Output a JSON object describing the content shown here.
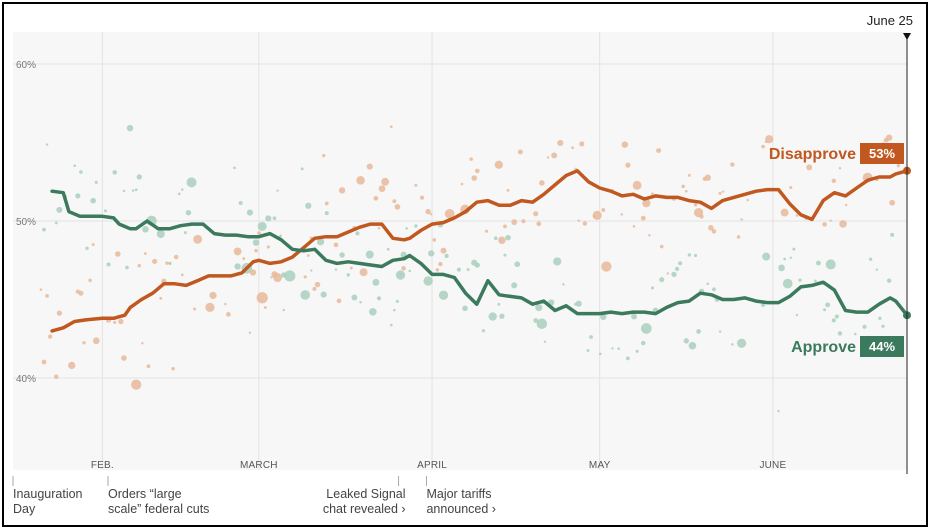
{
  "chart_data": {
    "type": "line",
    "title": "",
    "ylim": [
      35,
      62
    ],
    "y_ticks": [
      {
        "value": 40,
        "label": "40%"
      },
      {
        "value": 50,
        "label": "50%"
      },
      {
        "value": 60,
        "label": "60%"
      }
    ],
    "x_range_days": [
      -4,
      156
    ],
    "months": [
      {
        "label": "FEB.",
        "day": 12
      },
      {
        "label": "MARCH",
        "day": 40
      },
      {
        "label": "APRIL",
        "day": 71
      },
      {
        "label": "MAY",
        "day": 101
      },
      {
        "label": "JUNE",
        "day": 132
      }
    ],
    "end_date": {
      "label": "June 25",
      "day": 156
    },
    "series": [
      {
        "name": "Disapprove",
        "color": "#c0581f",
        "dot_color": "#e8b89a",
        "current_label": "53%",
        "x": [
          3,
          5,
          7,
          9,
          12,
          14,
          16,
          17,
          19,
          21,
          23,
          25,
          27,
          29,
          31,
          33,
          35,
          37,
          39,
          40,
          42,
          44,
          46,
          48,
          50,
          52,
          54,
          56,
          58,
          60,
          62,
          64,
          66,
          67,
          69,
          71,
          73,
          75,
          77,
          79,
          81,
          83,
          85,
          87,
          89,
          91,
          93,
          95,
          97,
          99,
          101,
          103,
          105,
          107,
          109,
          111,
          113,
          115,
          117,
          119,
          121,
          123,
          125,
          127,
          129,
          131,
          133,
          135,
          137,
          139,
          141,
          143,
          145,
          147,
          149,
          151,
          153,
          154,
          156
        ],
        "values": [
          43.0,
          43.2,
          43.6,
          43.7,
          43.8,
          43.8,
          44.0,
          44.5,
          45.0,
          45.4,
          46.0,
          46.0,
          45.9,
          46.2,
          46.5,
          46.5,
          46.5,
          46.7,
          47.4,
          47.5,
          47.3,
          47.4,
          47.7,
          48.3,
          48.9,
          49.0,
          49.0,
          49.3,
          49.6,
          49.8,
          49.8,
          48.9,
          48.8,
          48.9,
          49.4,
          49.8,
          49.9,
          50.2,
          50.6,
          51.2,
          51.3,
          51.0,
          51.0,
          51.3,
          51.2,
          51.7,
          52.3,
          52.9,
          53.2,
          52.5,
          52.1,
          51.9,
          51.6,
          51.7,
          51.4,
          51.6,
          51.5,
          51.5,
          51.3,
          51.2,
          50.8,
          51.3,
          51.5,
          51.7,
          51.9,
          52.0,
          52.0,
          51.1,
          50.4,
          50.1,
          51.3,
          51.8,
          51.6,
          52.1,
          52.6,
          52.8,
          52.8,
          53.0,
          53.2
        ]
      },
      {
        "name": "Approve",
        "color": "#3b7a5d",
        "dot_color": "#a9d0bd",
        "current_label": "44%",
        "x": [
          3,
          5,
          6,
          8,
          10,
          12,
          14,
          15,
          17,
          18,
          20,
          22,
          24,
          26,
          28,
          30,
          32,
          34,
          36,
          38,
          40,
          42,
          44,
          46,
          48,
          50,
          52,
          54,
          56,
          58,
          60,
          62,
          64,
          66,
          67,
          69,
          71,
          73,
          75,
          77,
          79,
          81,
          83,
          85,
          87,
          89,
          91,
          93,
          95,
          97,
          99,
          101,
          103,
          105,
          107,
          109,
          111,
          113,
          115,
          117,
          119,
          121,
          123,
          125,
          127,
          129,
          131,
          133,
          135,
          137,
          139,
          141,
          143,
          145,
          147,
          149,
          151,
          153,
          154,
          156
        ],
        "values": [
          51.9,
          51.8,
          50.6,
          50.3,
          50.3,
          50.3,
          50.2,
          49.8,
          49.5,
          49.5,
          50.0,
          49.5,
          49.5,
          49.7,
          49.8,
          49.8,
          49.2,
          49.1,
          49.1,
          49.0,
          49.0,
          49.2,
          48.8,
          48.2,
          48.1,
          48.2,
          47.5,
          47.3,
          47.4,
          47.3,
          47.2,
          47.1,
          47.5,
          47.6,
          47.8,
          47.3,
          46.6,
          46.6,
          46.4,
          45.4,
          44.7,
          46.2,
          45.3,
          45.2,
          45.1,
          44.7,
          44.9,
          44.3,
          44.6,
          44.1,
          44.1,
          44.1,
          44.2,
          44.1,
          44.2,
          44.2,
          44.1,
          44.5,
          44.8,
          44.9,
          45.4,
          45.3,
          45.0,
          45.0,
          45.1,
          44.9,
          44.8,
          44.8,
          45.2,
          45.8,
          45.9,
          46.1,
          45.6,
          44.3,
          44.2,
          44.2,
          44.7,
          45.1,
          44.9,
          44.0
        ]
      }
    ],
    "events": [
      {
        "day": -4,
        "lines": [
          "Inauguration",
          "Day"
        ],
        "anchor": "start"
      },
      {
        "day": 13,
        "lines": [
          "Orders “large",
          "scale” federal cuts"
        ],
        "anchor": "start"
      },
      {
        "day": 65,
        "lines": [
          "Leaked Signal",
          "chat revealed ›"
        ],
        "anchor": "end"
      },
      {
        "day": 70,
        "lines": [
          "Major tariffs",
          "announced ›"
        ],
        "anchor": "start"
      }
    ]
  }
}
